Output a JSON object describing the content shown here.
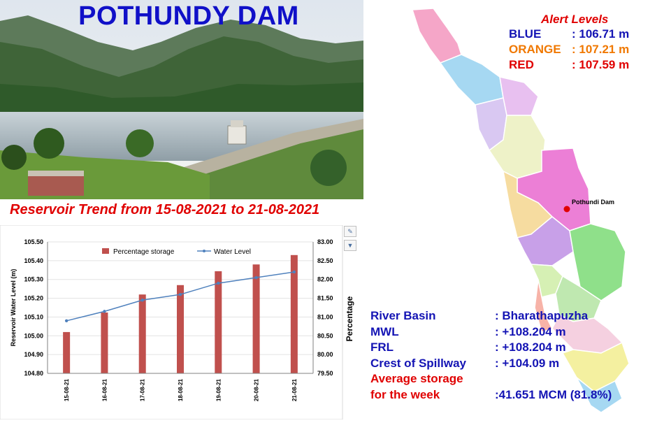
{
  "header": {
    "title": "POTHUNDY DAM"
  },
  "trend": {
    "title": "Reservoir Trend from 15-08-2021 to 21-08-2021"
  },
  "chart_data": {
    "type": "bar",
    "title": "",
    "categories": [
      "15-08-21",
      "16-08-21",
      "17-08-21",
      "18-08-21",
      "19-08-21",
      "20-08-21",
      "21-08-21"
    ],
    "series": [
      {
        "name": "Percentage storage",
        "type": "bar",
        "axis": "right",
        "color": "#c0504d",
        "values": [
          80.6,
          81.12,
          81.6,
          81.85,
          82.22,
          82.4,
          82.65
        ]
      },
      {
        "name": "Water Level",
        "type": "line",
        "axis": "left",
        "color": "#4f81bd",
        "values": [
          105.08,
          105.13,
          105.19,
          105.22,
          105.28,
          105.31,
          105.34
        ]
      }
    ],
    "ylabel": "Reservoir Water Level (m)",
    "y2label": "Percentage",
    "ylim": [
      104.8,
      105.5
    ],
    "y_ticks": [
      "104.80",
      "104.90",
      "105.00",
      "105.10",
      "105.20",
      "105.30",
      "105.40",
      "105.50"
    ],
    "y2lim": [
      79.5,
      83.0
    ],
    "y2_ticks": [
      "79.50",
      "80.00",
      "80.50",
      "81.00",
      "81.50",
      "82.00",
      "82.50",
      "83.00"
    ],
    "grid": true,
    "legend": "top-center"
  },
  "alerts": {
    "heading": "Alert Levels",
    "items": [
      {
        "name": "BLUE",
        "value": ": 106.71 m",
        "color": "#1414b4"
      },
      {
        "name": "ORANGE",
        "value": ": 107.21 m",
        "color": "#f07800"
      },
      {
        "name": "RED",
        "value": ": 107.59 m",
        "color": "#e00000"
      }
    ]
  },
  "map": {
    "marker_label": "Pothundi Dam"
  },
  "info": {
    "rows": [
      {
        "label": "River Basin",
        "value": ": Bharathapuzha"
      },
      {
        "label": "MWL",
        "value": ": +108.204 m"
      },
      {
        "label": "FRL",
        "value": ": +108.204 m"
      },
      {
        "label": "Crest of Spillway",
        "value": ": +104.09 m"
      },
      {
        "label": "Average storage",
        "value": ""
      },
      {
        "label": "for the week",
        "value": ":41.651 MCM (81.8%)"
      }
    ]
  }
}
